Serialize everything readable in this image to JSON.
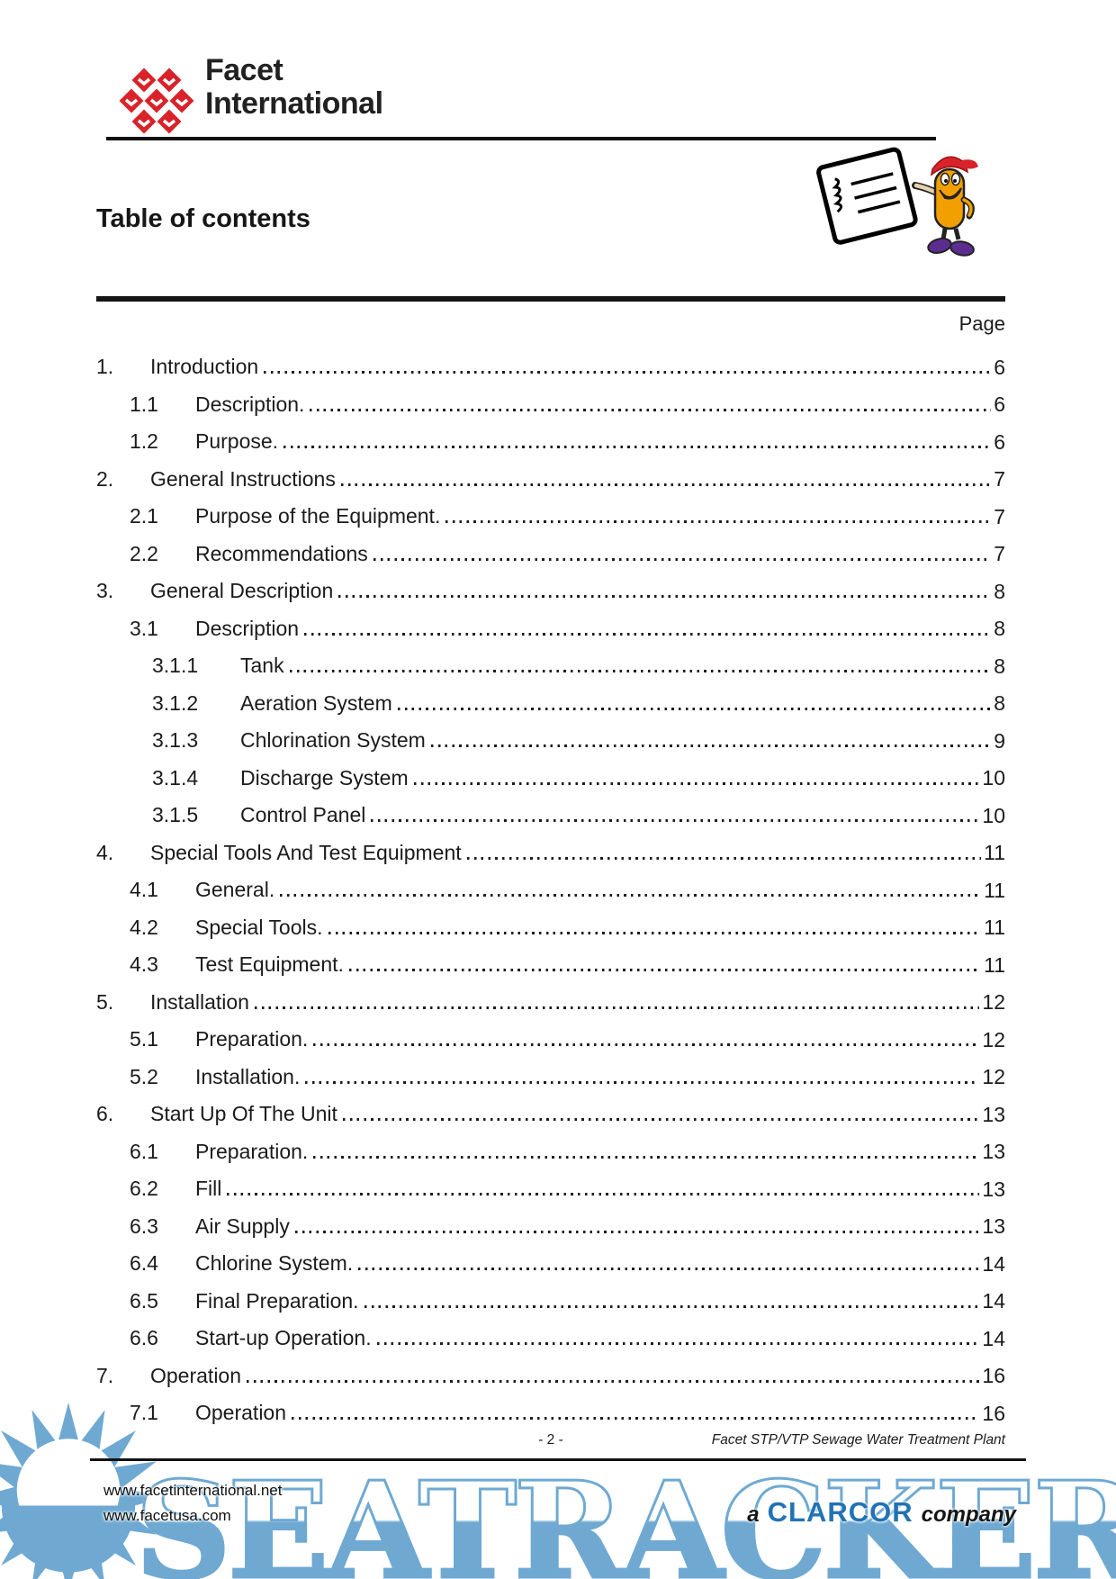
{
  "header": {
    "logo_line1": "Facet",
    "logo_line2": "International",
    "brand_red": "#d8232a"
  },
  "page_title": "Table of contents",
  "toc": {
    "column_header": "Page",
    "entries": [
      {
        "num": "1.",
        "title": "Introduction",
        "page": "6",
        "level": 1
      },
      {
        "num": "1.1",
        "title": "Description.",
        "page": "6",
        "level": 2
      },
      {
        "num": "1.2",
        "title": "Purpose.",
        "page": "6",
        "level": 2
      },
      {
        "num": "2.",
        "title": "General Instructions",
        "page": "7",
        "level": 1
      },
      {
        "num": "2.1",
        "title": "Purpose of the Equipment.",
        "page": "7",
        "level": 2
      },
      {
        "num": "2.2",
        "title": "Recommendations",
        "page": "7",
        "level": 2
      },
      {
        "num": "3.",
        "title": "General Description",
        "page": "8",
        "level": 1
      },
      {
        "num": "3.1",
        "title": "Description",
        "page": "8",
        "level": 2
      },
      {
        "num": "3.1.1",
        "title": "Tank",
        "page": "8",
        "level": 3
      },
      {
        "num": "3.1.2",
        "title": "Aeration System",
        "page": "8",
        "level": 3
      },
      {
        "num": "3.1.3",
        "title": "Chlorination System",
        "page": "9",
        "level": 3
      },
      {
        "num": "3.1.4",
        "title": "Discharge System",
        "page": "10",
        "level": 3
      },
      {
        "num": "3.1.5",
        "title": "Control Panel",
        "page": "10",
        "level": 3
      },
      {
        "num": "4.",
        "title": "Special Tools And Test Equipment",
        "page": "11",
        "level": 1
      },
      {
        "num": "4.1",
        "title": "General.",
        "page": "11",
        "level": 2
      },
      {
        "num": "4.2",
        "title": "Special Tools.",
        "page": "11",
        "level": 2
      },
      {
        "num": "4.3",
        "title": "Test Equipment.",
        "page": "11",
        "level": 2
      },
      {
        "num": "5.",
        "title": "Installation",
        "page": "12",
        "level": 1
      },
      {
        "num": "5.1",
        "title": "Preparation.",
        "page": "12",
        "level": 2
      },
      {
        "num": "5.2",
        "title": "Installation.",
        "page": "12",
        "level": 2
      },
      {
        "num": "6.",
        "title": "Start Up Of The Unit",
        "page": "13",
        "level": 1
      },
      {
        "num": "6.1",
        "title": "Preparation.",
        "page": "13",
        "level": 2
      },
      {
        "num": "6.2",
        "title": "Fill",
        "page": "13",
        "level": 2
      },
      {
        "num": "6.3",
        "title": "Air Supply",
        "page": "13",
        "level": 2
      },
      {
        "num": "6.4",
        "title": "Chlorine System.",
        "page": "14",
        "level": 2
      },
      {
        "num": "6.5",
        "title": "Final Preparation.",
        "page": "14",
        "level": 2
      },
      {
        "num": "6.6",
        "title": "Start-up Operation.",
        "page": "14",
        "level": 2
      },
      {
        "num": "7.",
        "title": "Operation",
        "page": "16",
        "level": 1
      },
      {
        "num": "7.1",
        "title": "Operation",
        "page": "16",
        "level": 2
      }
    ]
  },
  "footer": {
    "page_number": "- 2 -",
    "doc_title": "Facet STP/VTP Sewage Water Treatment Plant",
    "website1": "www.facetinternational.net",
    "website2": "www.facetusa.com",
    "company_prefix": "a",
    "company_name": "CLARCOR",
    "company_suffix": "company",
    "clarcor_blue": "#2173b4"
  },
  "watermark": {
    "text": "SEATRACKER.RU",
    "color": "#6fa9d2"
  }
}
